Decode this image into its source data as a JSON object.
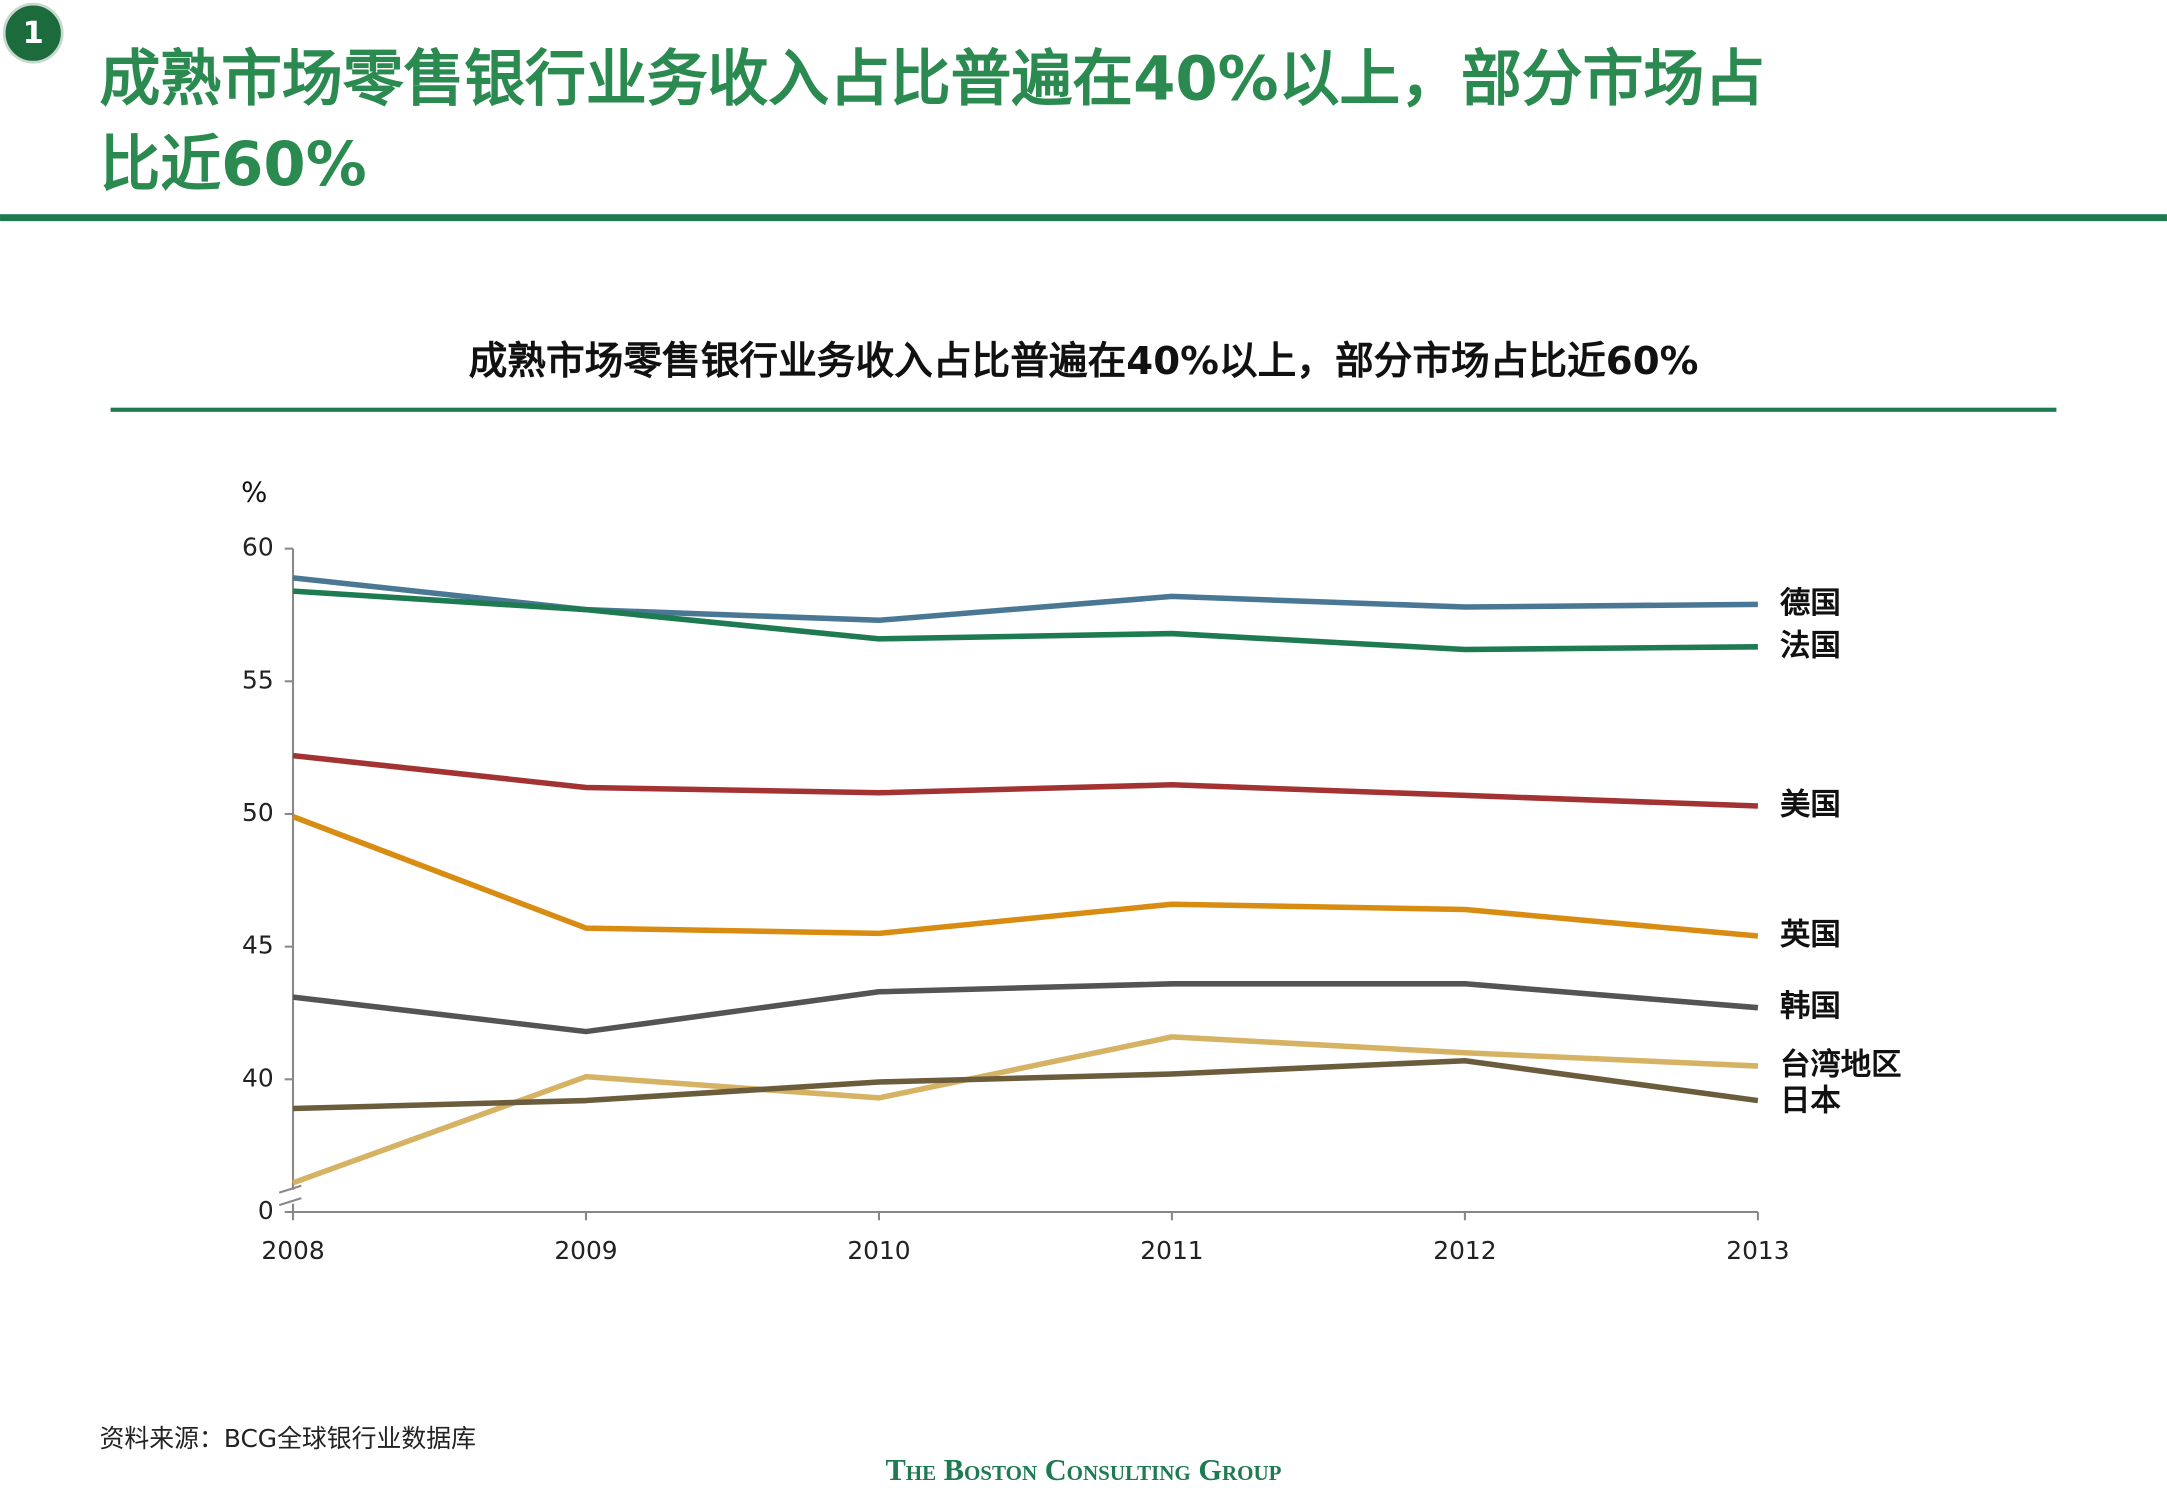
{
  "slide": {
    "badge": "1",
    "heading": [
      "成熟市场零售银行业务收入占比普遍在40%以上，部分市场占",
      "比近60%"
    ],
    "source": "资料来源：BCG全球银行业数据库",
    "logo": "The Boston Consulting Group"
  },
  "chart_data": {
    "type": "line",
    "title": "成熟市场零售银行业务收入占比普遍在40%以上，部分市场占比近60%",
    "y_label": "%",
    "categories": [
      "2008",
      "2009",
      "2010",
      "2011",
      "2012",
      "2013"
    ],
    "ylim": [
      0,
      60
    ],
    "y_break": [
      0,
      35
    ],
    "yticks": [
      0,
      40,
      45,
      50,
      55,
      60
    ],
    "grid": false,
    "legend": "line-end",
    "series": [
      {
        "name": "德国",
        "color": "#4a7794",
        "values": [
          58.9,
          57.7,
          57.3,
          58.2,
          57.8,
          57.9
        ]
      },
      {
        "name": "法国",
        "color": "#1e7a50",
        "values": [
          58.4,
          57.7,
          56.6,
          56.8,
          56.2,
          56.3
        ]
      },
      {
        "name": "美国",
        "color": "#a33333",
        "values": [
          52.2,
          51.0,
          50.8,
          51.1,
          50.7,
          50.3
        ]
      },
      {
        "name": "英国",
        "color": "#d98c12",
        "values": [
          49.9,
          45.7,
          45.5,
          46.6,
          46.4,
          45.4
        ]
      },
      {
        "name": "韩国",
        "color": "#545454",
        "values": [
          43.1,
          41.8,
          43.3,
          43.6,
          43.6,
          42.7
        ]
      },
      {
        "name": "台湾地区",
        "color": "#d6b264",
        "values": [
          36.1,
          40.1,
          39.3,
          41.6,
          41.0,
          40.5
        ]
      },
      {
        "name": "日本",
        "color": "#6b5c3c",
        "values": [
          38.9,
          39.2,
          39.9,
          40.2,
          40.7,
          39.2
        ]
      }
    ]
  }
}
